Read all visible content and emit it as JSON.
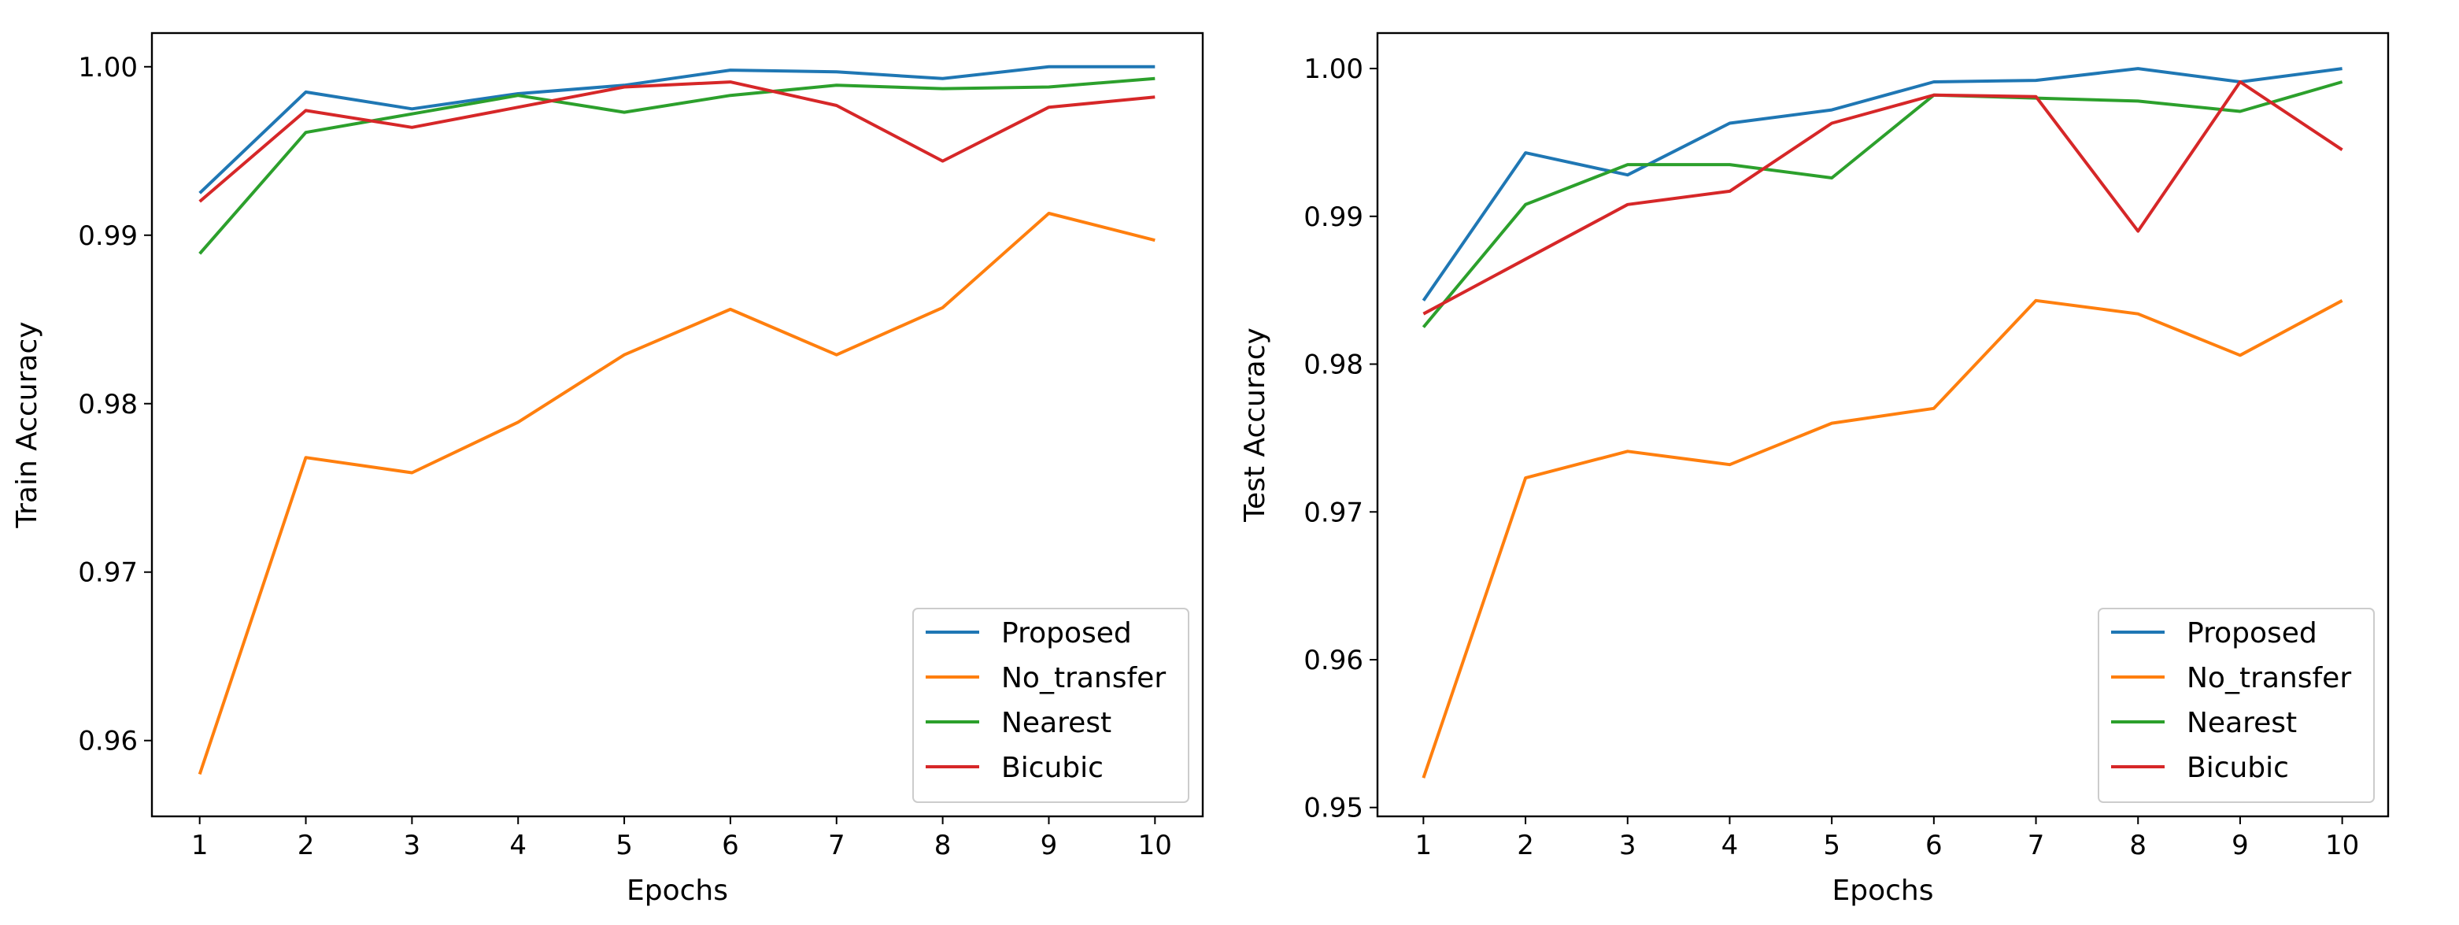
{
  "colors": {
    "Proposed": "#1f77b4",
    "No_transfer": "#ff7f0e",
    "Nearest": "#2ca02c",
    "Bicubic": "#d62728"
  },
  "chart_data": [
    {
      "type": "line",
      "title": "",
      "xlabel": "Epochs",
      "ylabel": "Train Accuracy",
      "x": [
        1,
        2,
        3,
        4,
        5,
        6,
        7,
        8,
        9,
        10
      ],
      "xticks": [
        "1",
        "2",
        "3",
        "4",
        "5",
        "6",
        "7",
        "8",
        "9",
        "10"
      ],
      "xlim": [
        0.55,
        10.45
      ],
      "ylim": [
        0.9555,
        1.002
      ],
      "yticks": [
        0.96,
        0.97,
        0.98,
        0.99,
        1.0
      ],
      "ytick_labels": [
        "0.96",
        "0.97",
        "0.98",
        "0.99",
        "1.00"
      ],
      "legend_position": "lower-right",
      "series": [
        {
          "name": "Proposed",
          "values": [
            0.9925,
            0.9985,
            0.9975,
            0.9984,
            0.9989,
            0.9998,
            0.9997,
            0.9993,
            1.0,
            1.0
          ]
        },
        {
          "name": "No_transfer",
          "values": [
            0.958,
            0.9768,
            0.9759,
            0.9789,
            0.9829,
            0.9856,
            0.9829,
            0.9857,
            0.9913,
            0.9897
          ]
        },
        {
          "name": "Nearest",
          "values": [
            0.9889,
            0.9961,
            0.9972,
            0.9983,
            0.9973,
            0.9983,
            0.9989,
            0.9987,
            0.9988,
            0.9993
          ]
        },
        {
          "name": "Bicubic",
          "values": [
            0.992,
            0.9974,
            0.9964,
            0.9976,
            0.9988,
            0.9991,
            0.9977,
            0.9944,
            0.9976,
            0.9982
          ]
        }
      ]
    },
    {
      "type": "line",
      "title": "",
      "xlabel": "Epochs",
      "ylabel": "Test Accuracy",
      "x": [
        1,
        2,
        3,
        4,
        5,
        6,
        7,
        8,
        9,
        10
      ],
      "xticks": [
        "1",
        "2",
        "3",
        "4",
        "5",
        "6",
        "7",
        "8",
        "9",
        "10"
      ],
      "xlim": [
        0.55,
        10.45
      ],
      "ylim": [
        0.9494,
        1.0024
      ],
      "yticks": [
        0.95,
        0.96,
        0.97,
        0.98,
        0.99,
        1.0
      ],
      "ytick_labels": [
        "0.95",
        "0.96",
        "0.97",
        "0.98",
        "0.99",
        "1.00"
      ],
      "legend_position": "lower-right",
      "series": [
        {
          "name": "Proposed",
          "values": [
            0.9843,
            0.9943,
            0.9928,
            0.9963,
            0.9972,
            0.9991,
            0.9992,
            1.0,
            0.9991,
            1.0
          ]
        },
        {
          "name": "No_transfer",
          "values": [
            0.952,
            0.9723,
            0.9741,
            0.9732,
            0.976,
            0.977,
            0.9843,
            0.9834,
            0.9806,
            0.9843
          ]
        },
        {
          "name": "Nearest",
          "values": [
            0.9825,
            0.9908,
            0.9935,
            0.9935,
            0.9926,
            0.9982,
            0.998,
            0.9978,
            0.9971,
            0.9991
          ]
        },
        {
          "name": "Bicubic",
          "values": [
            0.9834,
            0.9871,
            0.9908,
            0.9917,
            0.9963,
            0.9982,
            0.9981,
            0.989,
            0.9991,
            0.9945
          ]
        }
      ]
    }
  ]
}
